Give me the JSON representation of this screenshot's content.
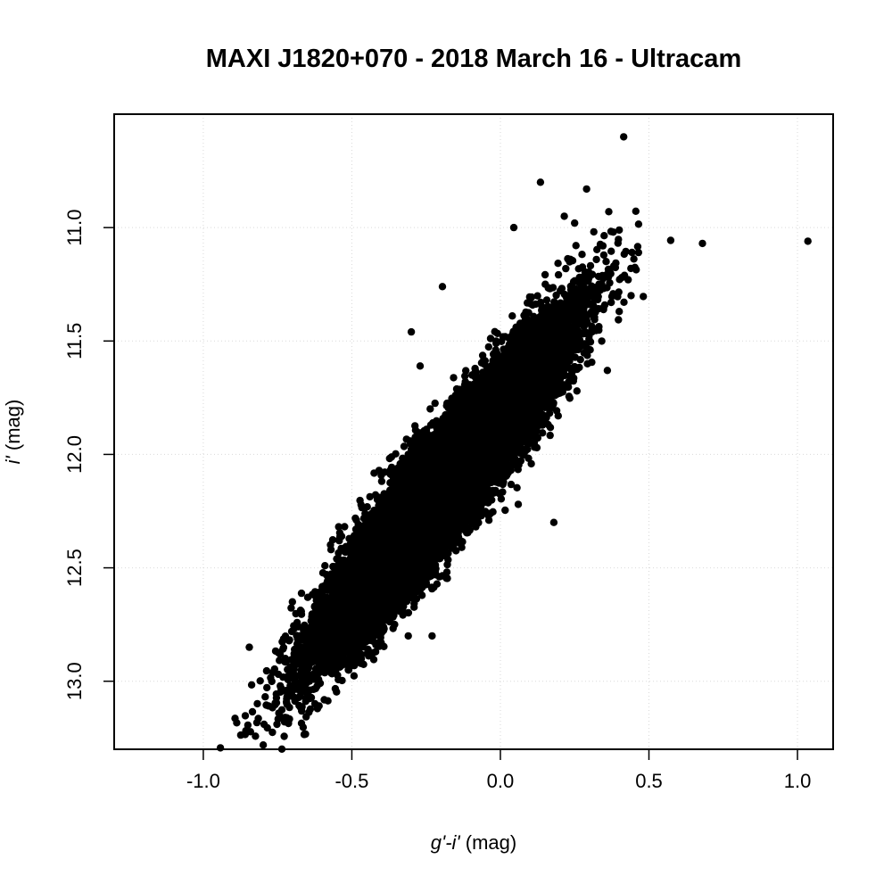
{
  "chart_data": {
    "type": "scatter",
    "title": "MAXI J1820+070 - 2018 March 16 - Ultracam",
    "xlabel": {
      "parts": [
        {
          "text": "g'-i'",
          "italic": true
        },
        {
          "text": " (mag)",
          "italic": false
        }
      ]
    },
    "ylabel": {
      "parts": [
        {
          "text": "i'",
          "italic": true
        },
        {
          "text": " (mag)",
          "italic": false
        }
      ]
    },
    "xlim": [
      -1.3,
      1.12
    ],
    "ylim": [
      13.3,
      10.5
    ],
    "y_inverted": true,
    "xticks": [
      -1.0,
      -0.5,
      0.0,
      0.5,
      1.0
    ],
    "xtick_labels": [
      "-1.0",
      "-0.5",
      "0.0",
      "0.5",
      "1.0"
    ],
    "yticks": [
      11.0,
      11.5,
      12.0,
      12.5,
      13.0
    ],
    "ytick_labels": [
      "11.0",
      "11.5",
      "12.0",
      "12.5",
      "13.0"
    ],
    "grid": true,
    "marker_color": "#000000",
    "distribution": {
      "points": 24000,
      "center": [
        -0.2,
        12.15
      ],
      "slope_mag_per_mag": 1.6,
      "ridge_scatter_mag": 0.12,
      "x_spread_mag": 0.19
    },
    "points": [
      [
        0.415,
        10.6
      ],
      [
        0.135,
        10.8
      ],
      [
        0.29,
        10.83
      ],
      [
        0.68,
        11.07
      ],
      [
        1.035,
        11.06
      ],
      [
        0.215,
        10.95
      ],
      [
        0.365,
        10.93
      ],
      [
        0.465,
        11.11
      ],
      [
        -0.845,
        12.85
      ],
      [
        -0.195,
        11.26
      ],
      [
        0.045,
        11.0
      ],
      [
        0.38,
        11.02
      ],
      [
        0.25,
        10.98
      ],
      [
        0.43,
        11.23
      ],
      [
        0.44,
        11.3
      ],
      [
        -0.3,
        11.46
      ],
      [
        -0.27,
        11.61
      ],
      [
        -0.59,
        12.85
      ],
      [
        -0.23,
        12.8
      ],
      [
        0.18,
        12.3
      ],
      [
        -0.7,
        12.65
      ],
      [
        -0.68,
        12.76
      ],
      [
        0.36,
        11.63
      ],
      [
        0.4,
        11.37
      ],
      [
        0.06,
        12.22
      ],
      [
        -0.655,
        12.88
      ],
      [
        -0.57,
        12.42
      ],
      [
        0.02,
        12.09
      ],
      [
        -0.42,
        12.87
      ],
      [
        -0.31,
        12.8
      ]
    ]
  }
}
